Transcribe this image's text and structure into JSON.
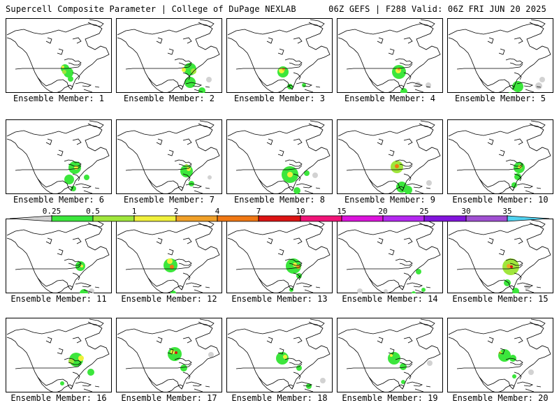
{
  "header": {
    "left": "Supercell Composite Parameter | College of DuPage NEXLAB",
    "right": "06Z GEFS | F288 Valid: 06Z FRI JUN 20 2025"
  },
  "colorbar": {
    "ticks": [
      "0.25",
      "0.5",
      "1",
      "2",
      "4",
      "7",
      "10",
      "15",
      "20",
      "25",
      "30",
      "35"
    ],
    "colors": [
      "#d2d2d2",
      "#3ce63c",
      "#a0e63c",
      "#f0f03c",
      "#f0a028",
      "#f07814",
      "#dc1414",
      "#f01478",
      "#dc14dc",
      "#b428f0",
      "#8214dc",
      "#a050d2",
      "#50d2f0"
    ]
  },
  "member_prefix": "Ensemble Member: ",
  "members": [
    {
      "num": "1",
      "blobs": [
        [
          85,
          72,
          6,
          0.7
        ],
        [
          90,
          78,
          7,
          0.5
        ],
        [
          93,
          87,
          4,
          0.6
        ],
        [
          84,
          77,
          3,
          1.5
        ],
        [
          82,
          70,
          2,
          2.3
        ]
      ]
    },
    {
      "num": "2",
      "blobs": [
        [
          106,
          73,
          9,
          0.8
        ],
        [
          97,
          74,
          3,
          2.2
        ],
        [
          111,
          76,
          4,
          1.3
        ],
        [
          106,
          92,
          8,
          0.7
        ],
        [
          123,
          104,
          5,
          0.6
        ],
        [
          133,
          88,
          4,
          0.3
        ]
      ]
    },
    {
      "num": "3",
      "blobs": [
        [
          81,
          77,
          8,
          0.9
        ],
        [
          79,
          75,
          4,
          2.6
        ],
        [
          82,
          73,
          2,
          5.5
        ],
        [
          91,
          98,
          4,
          0.6
        ],
        [
          111,
          96,
          3,
          0.7
        ]
      ]
    },
    {
      "num": "4",
      "blobs": [
        [
          89,
          77,
          10,
          0.9
        ],
        [
          88,
          75,
          4,
          2.8
        ],
        [
          89,
          73,
          2,
          6.5
        ],
        [
          96,
          105,
          5,
          0.7
        ],
        [
          116,
          95,
          4,
          0.3
        ],
        [
          131,
          96,
          4,
          0.3
        ]
      ]
    },
    {
      "num": "5",
      "blobs": [
        [
          101,
          98,
          8,
          0.7
        ],
        [
          90,
          110,
          4,
          0.6
        ],
        [
          131,
          97,
          5,
          0.3
        ],
        [
          136,
          88,
          4,
          0.3
        ]
      ]
    },
    {
      "num": "6",
      "blobs": [
        [
          99,
          69,
          9,
          0.9
        ],
        [
          101,
          69,
          3,
          2.4
        ],
        [
          91,
          86,
          7,
          0.7
        ],
        [
          116,
          83,
          4,
          0.7
        ],
        [
          97,
          99,
          4,
          0.6
        ]
      ]
    },
    {
      "num": "7",
      "blobs": [
        [
          101,
          74,
          9,
          0.8
        ],
        [
          104,
          71,
          3,
          2.1
        ],
        [
          101,
          66,
          2,
          1.4
        ],
        [
          108,
          92,
          4,
          0.6
        ],
        [
          134,
          83,
          3,
          0.3
        ]
      ]
    },
    {
      "num": "8",
      "blobs": [
        [
          91,
          79,
          12,
          0.9
        ],
        [
          91,
          79,
          4,
          2.3
        ],
        [
          115,
          77,
          4,
          0.6
        ],
        [
          127,
          80,
          4,
          0.3
        ],
        [
          101,
          102,
          5,
          0.6
        ]
      ]
    },
    {
      "num": "9",
      "blobs": [
        [
          86,
          68,
          9,
          1
        ],
        [
          86,
          67,
          3,
          8.5
        ],
        [
          93,
          97,
          8,
          0.8
        ],
        [
          102,
          101,
          6,
          0.7
        ],
        [
          132,
          91,
          4,
          0.3
        ]
      ]
    },
    {
      "num": "10",
      "blobs": [
        [
          103,
          69,
          8,
          0.9
        ],
        [
          104,
          68,
          3,
          3
        ],
        [
          101,
          82,
          5,
          0.8
        ],
        [
          96,
          94,
          4,
          0.6
        ]
      ]
    },
    {
      "num": "11",
      "blobs": [
        [
          107,
          68,
          7,
          0.9
        ],
        [
          109,
          68,
          2,
          2.6
        ],
        [
          112,
          107,
          6,
          0.7
        ],
        [
          123,
          104,
          4,
          0.3
        ]
      ]
    },
    {
      "num": "12",
      "blobs": [
        [
          78,
          67,
          10,
          0.9
        ],
        [
          77,
          61,
          4,
          2.5
        ],
        [
          80,
          69,
          3,
          8
        ],
        [
          82,
          107,
          4,
          0.6
        ]
      ]
    },
    {
      "num": "13",
      "blobs": [
        [
          96,
          68,
          11,
          0.9
        ],
        [
          98,
          66,
          3,
          2.5
        ],
        [
          103,
          69,
          3,
          4.5
        ],
        [
          104,
          82,
          4,
          0.6
        ],
        [
          93,
          102,
          3,
          0.6
        ]
      ]
    },
    {
      "num": "14",
      "blobs": [
        [
          117,
          76,
          4,
          0.7
        ],
        [
          124,
          102,
          3,
          0.6
        ],
        [
          110,
          107,
          3,
          0.6
        ],
        [
          33,
          104,
          4,
          0.3
        ],
        [
          70,
          104,
          3,
          0.3
        ]
      ]
    },
    {
      "num": "15",
      "blobs": [
        [
          91,
          69,
          12,
          1
        ],
        [
          88,
          68,
          3,
          4.5
        ],
        [
          92,
          69,
          2,
          11
        ],
        [
          86,
          92,
          5,
          0.7
        ],
        [
          98,
          104,
          5,
          0.6
        ],
        [
          115,
          98,
          4,
          0.3
        ]
      ]
    },
    {
      "num": "16",
      "blobs": [
        [
          101,
          60,
          10,
          0.9
        ],
        [
          108,
          58,
          4,
          3.5
        ],
        [
          94,
          62,
          4,
          1.4
        ],
        [
          122,
          78,
          5,
          0.8
        ],
        [
          81,
          94,
          3,
          0.6
        ]
      ]
    },
    {
      "num": "17",
      "blobs": [
        [
          84,
          52,
          10,
          0.9
        ],
        [
          81,
          49,
          3,
          2.5
        ],
        [
          86,
          50,
          2,
          10
        ],
        [
          97,
          72,
          5,
          0.6
        ],
        [
          136,
          53,
          4,
          0.3
        ]
      ]
    },
    {
      "num": "18",
      "blobs": [
        [
          80,
          58,
          9,
          0.9
        ],
        [
          84,
          56,
          3,
          2.4
        ],
        [
          104,
          72,
          4,
          0.6
        ],
        [
          118,
          98,
          4,
          0.6
        ],
        [
          138,
          90,
          4,
          0.3
        ]
      ]
    },
    {
      "num": "19",
      "blobs": [
        [
          82,
          58,
          9,
          0.8
        ],
        [
          78,
          54,
          2,
          2.2
        ],
        [
          95,
          70,
          5,
          0.6
        ],
        [
          95,
          92,
          3,
          0.6
        ],
        [
          133,
          65,
          4,
          0.3
        ]
      ]
    },
    {
      "num": "20",
      "blobs": [
        [
          82,
          54,
          9,
          0.9
        ],
        [
          76,
          50,
          2,
          2.5
        ],
        [
          94,
          58,
          5,
          0.8
        ],
        [
          96,
          84,
          3,
          0.6
        ],
        [
          120,
          78,
          4,
          0.3
        ]
      ]
    }
  ]
}
